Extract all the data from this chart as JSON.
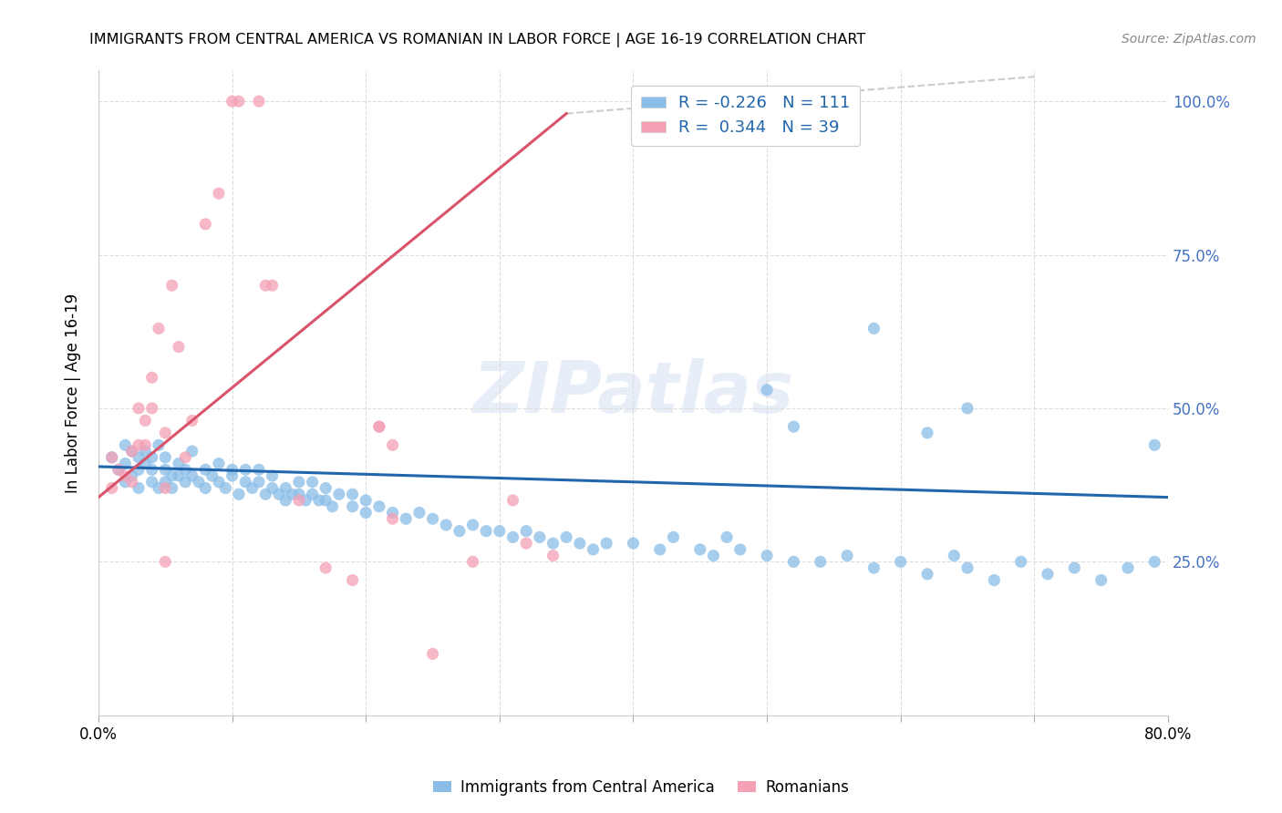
{
  "title": "IMMIGRANTS FROM CENTRAL AMERICA VS ROMANIAN IN LABOR FORCE | AGE 16-19 CORRELATION CHART",
  "source": "Source: ZipAtlas.com",
  "ylabel": "In Labor Force | Age 16-19",
  "xlim": [
    0.0,
    0.8
  ],
  "ylim": [
    0.0,
    1.05
  ],
  "xticks": [
    0.0,
    0.1,
    0.2,
    0.3,
    0.4,
    0.5,
    0.6,
    0.7,
    0.8
  ],
  "xticklabels": [
    "0.0%",
    "",
    "",
    "",
    "",
    "",
    "",
    "",
    "80.0%"
  ],
  "ytick_positions": [
    0.0,
    0.25,
    0.5,
    0.75,
    1.0
  ],
  "yticklabels_right": [
    "",
    "25.0%",
    "50.0%",
    "75.0%",
    "100.0%"
  ],
  "blue_color": "#8abde8",
  "pink_color": "#f4a0b5",
  "blue_line_color": "#2166ac",
  "pink_line_color": "#d9536a",
  "dashed_line_color": "#cccccc",
  "R_blue": -0.226,
  "N_blue": 111,
  "R_pink": 0.344,
  "N_pink": 39,
  "legend_label_blue": "Immigrants from Central America",
  "legend_label_pink": "Romanians",
  "watermark": "ZIPatlas",
  "blue_scatter_x": [
    0.01,
    0.015,
    0.02,
    0.02,
    0.02,
    0.025,
    0.025,
    0.03,
    0.03,
    0.03,
    0.035,
    0.035,
    0.04,
    0.04,
    0.04,
    0.045,
    0.045,
    0.05,
    0.05,
    0.05,
    0.055,
    0.055,
    0.06,
    0.06,
    0.065,
    0.065,
    0.07,
    0.07,
    0.075,
    0.08,
    0.08,
    0.085,
    0.09,
    0.09,
    0.095,
    0.1,
    0.1,
    0.105,
    0.11,
    0.11,
    0.115,
    0.12,
    0.12,
    0.125,
    0.13,
    0.13,
    0.135,
    0.14,
    0.14,
    0.145,
    0.15,
    0.15,
    0.155,
    0.16,
    0.16,
    0.165,
    0.17,
    0.17,
    0.175,
    0.18,
    0.19,
    0.19,
    0.2,
    0.2,
    0.21,
    0.22,
    0.23,
    0.24,
    0.25,
    0.26,
    0.27,
    0.28,
    0.29,
    0.3,
    0.31,
    0.32,
    0.33,
    0.34,
    0.35,
    0.36,
    0.37,
    0.38,
    0.4,
    0.42,
    0.43,
    0.45,
    0.46,
    0.47,
    0.48,
    0.5,
    0.52,
    0.54,
    0.56,
    0.58,
    0.6,
    0.62,
    0.64,
    0.65,
    0.67,
    0.69,
    0.71,
    0.73,
    0.75,
    0.77,
    0.79,
    0.5,
    0.52,
    0.58,
    0.62,
    0.65,
    0.79
  ],
  "blue_scatter_y": [
    0.42,
    0.4,
    0.44,
    0.38,
    0.41,
    0.43,
    0.39,
    0.4,
    0.42,
    0.37,
    0.41,
    0.43,
    0.38,
    0.42,
    0.4,
    0.44,
    0.37,
    0.4,
    0.42,
    0.38,
    0.37,
    0.39,
    0.41,
    0.39,
    0.38,
    0.4,
    0.39,
    0.43,
    0.38,
    0.4,
    0.37,
    0.39,
    0.41,
    0.38,
    0.37,
    0.39,
    0.4,
    0.36,
    0.38,
    0.4,
    0.37,
    0.38,
    0.4,
    0.36,
    0.37,
    0.39,
    0.36,
    0.35,
    0.37,
    0.36,
    0.36,
    0.38,
    0.35,
    0.36,
    0.38,
    0.35,
    0.35,
    0.37,
    0.34,
    0.36,
    0.34,
    0.36,
    0.33,
    0.35,
    0.34,
    0.33,
    0.32,
    0.33,
    0.32,
    0.31,
    0.3,
    0.31,
    0.3,
    0.3,
    0.29,
    0.3,
    0.29,
    0.28,
    0.29,
    0.28,
    0.27,
    0.28,
    0.28,
    0.27,
    0.29,
    0.27,
    0.26,
    0.29,
    0.27,
    0.26,
    0.25,
    0.25,
    0.26,
    0.24,
    0.25,
    0.23,
    0.26,
    0.24,
    0.22,
    0.25,
    0.23,
    0.24,
    0.22,
    0.24,
    0.25,
    0.53,
    0.47,
    0.63,
    0.46,
    0.5,
    0.44
  ],
  "pink_scatter_x": [
    0.01,
    0.01,
    0.015,
    0.02,
    0.025,
    0.025,
    0.03,
    0.03,
    0.035,
    0.035,
    0.04,
    0.04,
    0.045,
    0.05,
    0.05,
    0.055,
    0.06,
    0.065,
    0.07,
    0.08,
    0.09,
    0.1,
    0.105,
    0.12,
    0.125,
    0.13,
    0.15,
    0.17,
    0.19,
    0.21,
    0.22,
    0.22,
    0.25,
    0.28,
    0.31,
    0.32,
    0.34,
    0.05,
    0.21
  ],
  "pink_scatter_y": [
    0.42,
    0.37,
    0.4,
    0.39,
    0.43,
    0.38,
    0.5,
    0.44,
    0.48,
    0.44,
    0.55,
    0.5,
    0.63,
    0.46,
    0.37,
    0.7,
    0.6,
    0.42,
    0.48,
    0.8,
    0.85,
    1.0,
    1.0,
    1.0,
    0.7,
    0.7,
    0.35,
    0.24,
    0.22,
    0.47,
    0.32,
    0.44,
    0.1,
    0.25,
    0.35,
    0.28,
    0.26,
    0.25,
    0.47
  ],
  "blue_line_x0": 0.0,
  "blue_line_y0": 0.405,
  "blue_line_x1": 0.8,
  "blue_line_y1": 0.355,
  "pink_line_x0": 0.0,
  "pink_line_y0": 0.355,
  "pink_line_x1": 0.35,
  "pink_line_y1": 0.98,
  "dashed_line_x0": 0.35,
  "dashed_line_y0": 0.98,
  "dashed_line_x1": 0.7,
  "dashed_line_y1": 1.04
}
